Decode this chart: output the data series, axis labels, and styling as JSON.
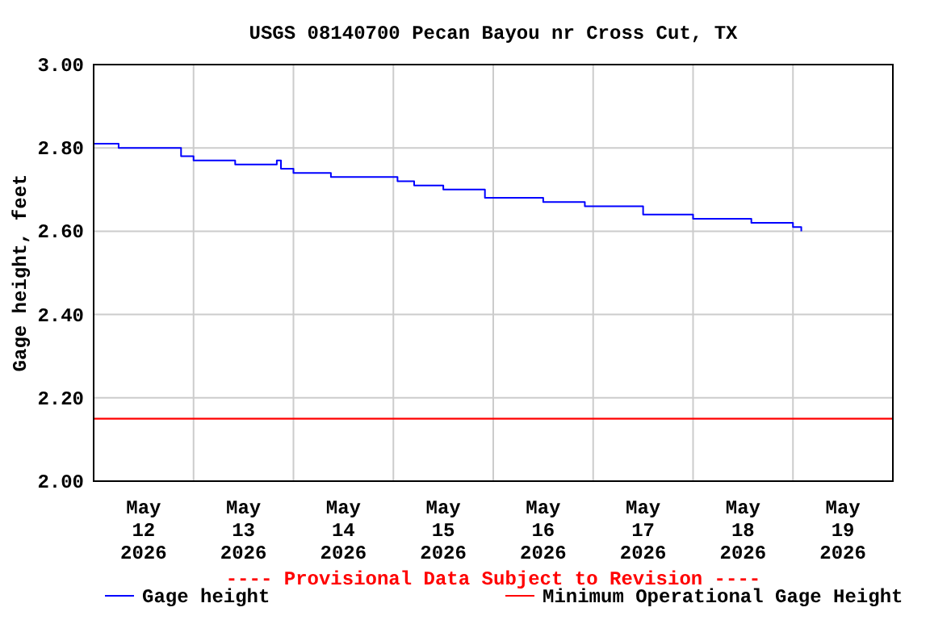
{
  "chart_data": {
    "type": "step",
    "title": "USGS 08140700 Pecan Bayou nr Cross Cut, TX",
    "ylabel": "Gage height, feet",
    "xlim": [
      "2026-05-12T00:00",
      "2026-05-20T00:00"
    ],
    "xticks": [
      {
        "value": "2026-05-12T00:00",
        "label": null
      },
      {
        "value": "2026-05-12T12:00",
        "label": "May\n12\n2026"
      },
      {
        "value": "2026-05-13T00:00",
        "label": null
      },
      {
        "value": "2026-05-13T12:00",
        "label": "May\n13\n2026"
      },
      {
        "value": "2026-05-14T00:00",
        "label": null
      },
      {
        "value": "2026-05-14T12:00",
        "label": "May\n14\n2026"
      },
      {
        "value": "2026-05-15T00:00",
        "label": null
      },
      {
        "value": "2026-05-15T12:00",
        "label": "May\n15\n2026"
      },
      {
        "value": "2026-05-16T00:00",
        "label": null
      },
      {
        "value": "2026-05-16T12:00",
        "label": "May\n16\n2026"
      },
      {
        "value": "2026-05-17T00:00",
        "label": null
      },
      {
        "value": "2026-05-17T12:00",
        "label": "May\n17\n2026"
      },
      {
        "value": "2026-05-18T00:00",
        "label": null
      },
      {
        "value": "2026-05-18T12:00",
        "label": "May\n18\n2026"
      },
      {
        "value": "2026-05-19T00:00",
        "label": null
      },
      {
        "value": "2026-05-19T12:00",
        "label": "May\n19\n2026"
      },
      {
        "value": "2026-05-20T00:00",
        "label": null
      }
    ],
    "ylim": [
      2.0,
      3.0
    ],
    "yticks": [
      {
        "value": 2.0,
        "label": "2.00"
      },
      {
        "value": 2.2,
        "label": "2.20"
      },
      {
        "value": 2.4,
        "label": "2.40"
      },
      {
        "value": 2.6,
        "label": "2.60"
      },
      {
        "value": 2.8,
        "label": "2.80"
      },
      {
        "value": 3.0,
        "label": "3.00"
      }
    ],
    "grid": true,
    "legend": "bottom",
    "marker": "none",
    "series": [
      {
        "name": "Gage height",
        "color": "#0000ff",
        "x": [
          "2026-05-12T00:00",
          "2026-05-12T06:00",
          "2026-05-12T21:00",
          "2026-05-13T00:00",
          "2026-05-13T10:00",
          "2026-05-13T20:00",
          "2026-05-13T21:00",
          "2026-05-14T00:00",
          "2026-05-14T09:00",
          "2026-05-15T01:00",
          "2026-05-15T05:00",
          "2026-05-15T12:00",
          "2026-05-15T22:00",
          "2026-05-16T12:00",
          "2026-05-16T22:00",
          "2026-05-17T12:00",
          "2026-05-18T00:00",
          "2026-05-18T14:00",
          "2026-05-19T00:00",
          "2026-05-19T02:00"
        ],
        "values": [
          2.81,
          2.8,
          2.78,
          2.77,
          2.76,
          2.77,
          2.75,
          2.74,
          2.73,
          2.72,
          2.71,
          2.7,
          2.68,
          2.67,
          2.66,
          2.64,
          2.63,
          2.62,
          2.61,
          2.6
        ]
      }
    ],
    "ref_lines": [
      {
        "axis": "y",
        "value": 2.15,
        "label": "Minimum Operational Gage Height",
        "color": "#ff0000"
      }
    ],
    "annotations": [
      "---- Provisional Data Subject to Revision ----"
    ]
  }
}
